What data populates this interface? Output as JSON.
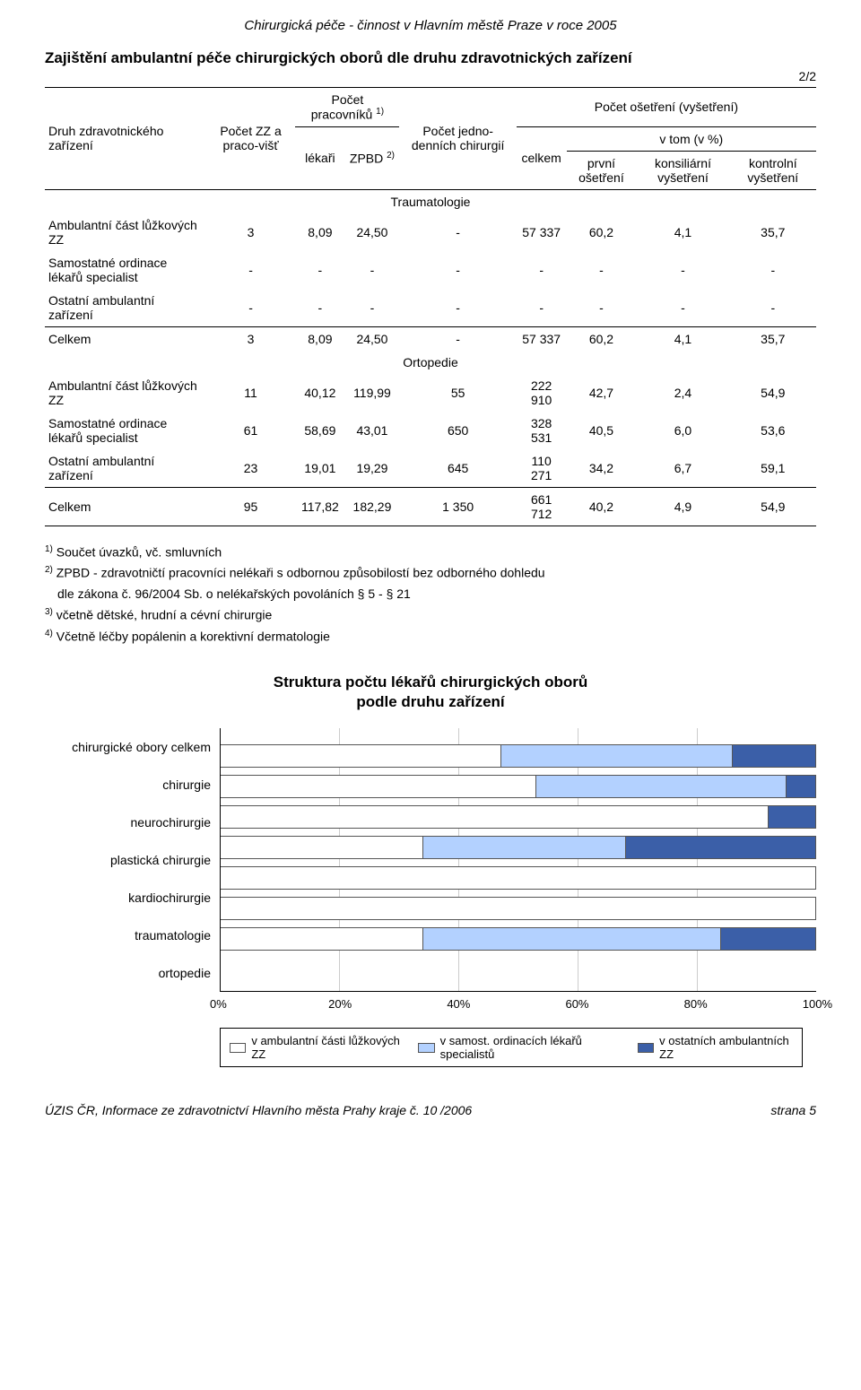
{
  "doc_header": "Chirurgická péče - činnost v  Hlavním městě Praze v roce 2005",
  "title": "Zajištění ambulantní péče chirurgických oborů dle druhu zdravotnických zařízení",
  "page_marker": "2/2",
  "table": {
    "col_group_left": "Druh zdravotnického zařízení",
    "col_zz": "Počet ZZ a praco-višť",
    "col_workers": "Počet pracovníků ",
    "col_workers_sup": "1)",
    "col_lekari": "lékaři",
    "col_zpbd": "ZPBD ",
    "col_zpbd_sup": "2)",
    "col_jedno": "Počet jedno-denních chirurgií",
    "col_osetreni": "Počet ošetření (vyšetření)",
    "col_celkem": "celkem",
    "col_vtom": "v tom (v %)",
    "col_prvni": "první ošetření",
    "col_konsil": "konsiliární vyšetření",
    "col_kontrol": "kontrolní vyšetření",
    "sections": [
      {
        "name": "Traumatologie",
        "rows": [
          {
            "label": "Ambulantní část lůžkových ZZ",
            "v": [
              "3",
              "8,09",
              "24,50",
              "-",
              "57 337",
              "60,2",
              "4,1",
              "35,7"
            ]
          },
          {
            "label": "Samostatné ordinace lékařů specialist",
            "v": [
              "-",
              "-",
              "-",
              "-",
              "-",
              "-",
              "-",
              "-"
            ]
          },
          {
            "label": "Ostatní ambulantní zařízení",
            "v": [
              "-",
              "-",
              "-",
              "-",
              "-",
              "-",
              "-",
              "-"
            ]
          }
        ],
        "total": {
          "label": "Celkem",
          "v": [
            "3",
            "8,09",
            "24,50",
            "-",
            "57 337",
            "60,2",
            "4,1",
            "35,7"
          ]
        }
      },
      {
        "name": "Ortopedie",
        "rows": [
          {
            "label": "Ambulantní část lůžkových ZZ",
            "v": [
              "11",
              "40,12",
              "119,99",
              "55",
              "222 910",
              "42,7",
              "2,4",
              "54,9"
            ]
          },
          {
            "label": "Samostatné ordinace lékařů specialist",
            "v": [
              "61",
              "58,69",
              "43,01",
              "650",
              "328 531",
              "40,5",
              "6,0",
              "53,6"
            ]
          },
          {
            "label": "Ostatní ambulantní zařízení",
            "v": [
              "23",
              "19,01",
              "19,29",
              "645",
              "110 271",
              "34,2",
              "6,7",
              "59,1"
            ]
          }
        ],
        "total": {
          "label": "Celkem",
          "v": [
            "95",
            "117,82",
            "182,29",
            "1 350",
            "661 712",
            "40,2",
            "4,9",
            "54,9"
          ]
        }
      }
    ]
  },
  "footnotes": {
    "f1_sup": "1)",
    "f1": " Součet úvazků, vč. smluvních",
    "f2_sup": "2)",
    "f2a": " ZPBD - zdravotničtí pracovníci nelékaři s odbornou způsobilostí bez odborného dohledu",
    "f2b": "dle zákona č. 96/2004 Sb. o nelékařských povoláních § 5 - § 21",
    "f3_sup": "3)",
    "f3": " včetně dětské, hrudní a cévní chirurgie",
    "f4_sup": "4)",
    "f4": " Včetně léčby popálenin a korektivní dermatologie"
  },
  "chart": {
    "title_line1": "Struktura počtu lékařů chirurgických oborů",
    "title_line2": "podle druhu zařízení",
    "type": "stacked_bar_horizontal",
    "colors": [
      "#ffffff",
      "#b3d1ff",
      "#3b5fa8"
    ],
    "border_color": "#555555",
    "grid_color": "#cccccc",
    "xlim": [
      0,
      100
    ],
    "xticks": [
      "0%",
      "20%",
      "40%",
      "60%",
      "80%",
      "100%"
    ],
    "categories": [
      {
        "label": "chirurgické obory celkem",
        "values": [
          47,
          39,
          14
        ]
      },
      {
        "label": "chirurgie",
        "values": [
          53,
          42,
          5
        ]
      },
      {
        "label": "neurochirurgie",
        "values": [
          92,
          0,
          8
        ]
      },
      {
        "label": "plastická chirurgie",
        "values": [
          34,
          34,
          32
        ]
      },
      {
        "label": "kardiochirurgie",
        "values": [
          100,
          0,
          0
        ]
      },
      {
        "label": "traumatologie",
        "values": [
          100,
          0,
          0
        ]
      },
      {
        "label": "ortopedie",
        "values": [
          34,
          50,
          16
        ]
      }
    ],
    "legend": [
      "v ambulantní části lůžkových ZZ",
      "v samost. ordinacích lékařů specialistů",
      "v ostatních ambulantních ZZ"
    ]
  },
  "footer": {
    "left": "ÚZIS ČR, Informace ze zdravotnictví Hlavního města Prahy kraje č. 10 /2006",
    "right": "strana 5"
  }
}
